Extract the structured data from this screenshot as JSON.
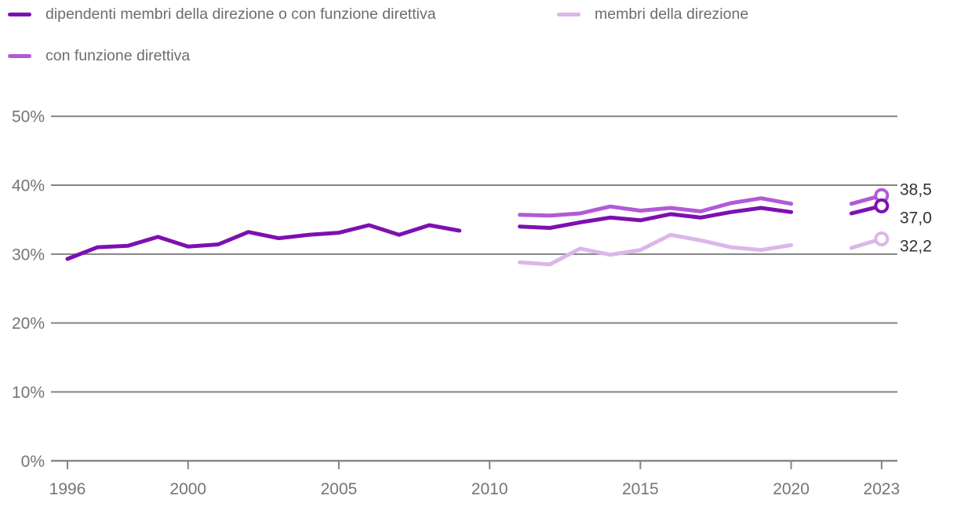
{
  "legend": {
    "items": [
      {
        "label": "dipendenti membri della direzione o con funzione direttiva",
        "color": "#7d10b0"
      },
      {
        "label": "membri della direzione",
        "color": "#dcb6e9"
      },
      {
        "label": "con funzione direttiva",
        "color": "#b25ad6"
      }
    ]
  },
  "chart_data": {
    "type": "line",
    "title": "",
    "xlabel": "",
    "ylabel": "",
    "unit": "%",
    "ylim": [
      0,
      50
    ],
    "xlim": [
      1996,
      2023
    ],
    "grid": "horizontal",
    "gridline_color": "#838383",
    "legend_position": "top",
    "y_ticks": [
      {
        "value": 0,
        "label": "0%"
      },
      {
        "value": 10,
        "label": "10%"
      },
      {
        "value": 20,
        "label": "20%"
      },
      {
        "value": 30,
        "label": "30%"
      },
      {
        "value": 40,
        "label": "40%"
      },
      {
        "value": 50,
        "label": "50%"
      }
    ],
    "x_ticks": [
      {
        "value": 1996,
        "label": "1996"
      },
      {
        "value": 2000,
        "label": "2000"
      },
      {
        "value": 2005,
        "label": "2005"
      },
      {
        "value": 2010,
        "label": "2010"
      },
      {
        "value": 2015,
        "label": "2015"
      },
      {
        "value": 2020,
        "label": "2020"
      },
      {
        "value": 2023,
        "label": "2023"
      }
    ],
    "draw_order": [
      1,
      2,
      0
    ],
    "series": [
      {
        "name": "dipendenti membri della direzione o con funzione direttiva",
        "color": "#7d10b0",
        "end_label": "37,0",
        "segments": [
          {
            "start_year": 1996,
            "values": [
              29.3,
              31.0,
              31.2,
              32.5,
              31.1,
              31.4,
              33.2,
              32.3,
              32.8,
              33.1,
              34.2,
              32.8,
              34.2,
              33.4
            ]
          },
          {
            "start_year": 2011,
            "values": [
              34.0,
              33.8,
              34.6,
              35.3,
              34.9,
              35.8,
              35.3,
              36.1,
              36.7,
              36.1
            ]
          },
          {
            "start_year": 2022,
            "values": [
              35.9,
              37.0
            ],
            "end_marker": true
          }
        ]
      },
      {
        "name": "membri della direzione",
        "color": "#dcb6e9",
        "end_label": "32,2",
        "segments": [
          {
            "start_year": 2011,
            "values": [
              28.8,
              28.5,
              30.8,
              29.9,
              30.6,
              32.8,
              32.0,
              31.0,
              30.6,
              31.3
            ]
          },
          {
            "start_year": 2022,
            "values": [
              30.9,
              32.2
            ],
            "end_marker": true
          }
        ]
      },
      {
        "name": "con funzione direttiva",
        "color": "#b25ad6",
        "end_label": "38,5",
        "segments": [
          {
            "start_year": 2011,
            "values": [
              35.7,
              35.6,
              35.9,
              36.9,
              36.3,
              36.7,
              36.2,
              37.4,
              38.1,
              37.3
            ]
          },
          {
            "start_year": 2022,
            "values": [
              37.3,
              38.5
            ],
            "end_marker": true
          }
        ]
      }
    ]
  }
}
